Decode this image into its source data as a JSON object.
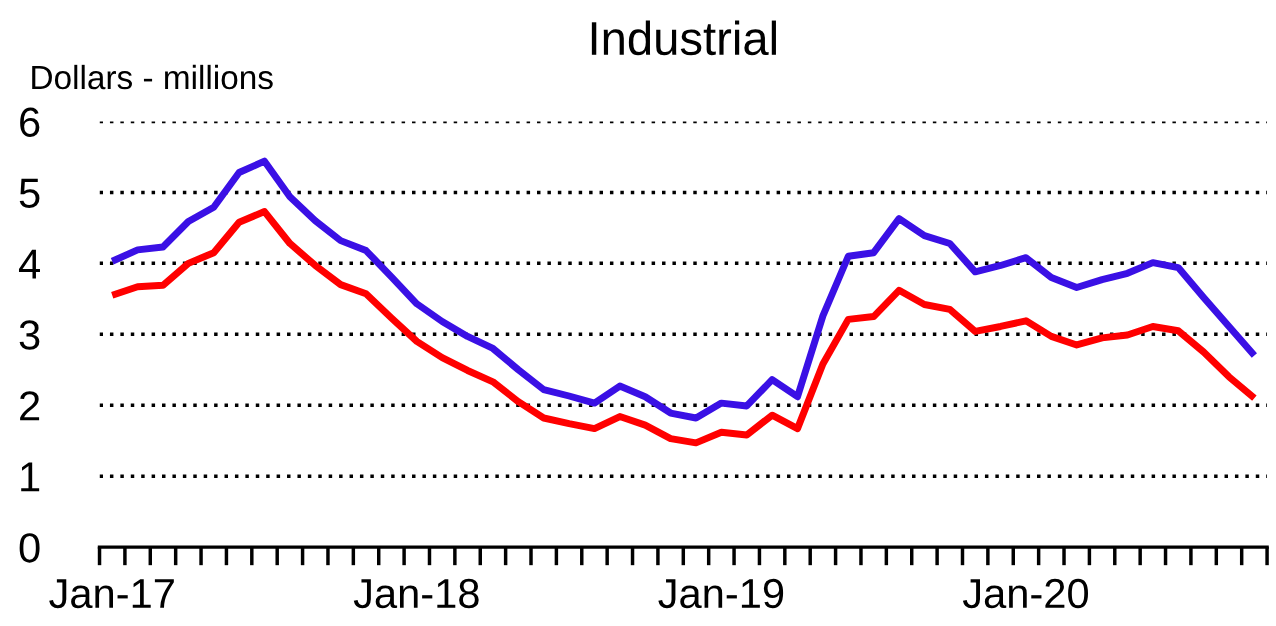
{
  "chart_data": {
    "type": "line",
    "title": "Industrial",
    "ylabel": "Dollars - millions",
    "categories": [
      "Jan-17",
      null,
      null,
      null,
      null,
      null,
      null,
      null,
      null,
      null,
      null,
      null,
      "Jan-18",
      null,
      null,
      null,
      null,
      null,
      null,
      null,
      null,
      null,
      null,
      null,
      "Jan-19",
      null,
      null,
      null,
      null,
      null,
      null,
      null,
      null,
      null,
      null,
      null,
      "Jan-20",
      null,
      null,
      null,
      null,
      null,
      null,
      null,
      null,
      null
    ],
    "series": [
      {
        "color": "#3a10e5",
        "values": [
          4.03,
          4.19,
          4.23,
          4.59,
          4.79,
          5.28,
          5.44,
          4.94,
          4.6,
          4.32,
          4.18,
          3.81,
          3.43,
          3.18,
          2.97,
          2.8,
          2.5,
          2.22,
          2.13,
          2.03,
          2.27,
          2.12,
          1.89,
          1.82,
          2.03,
          1.99,
          2.36,
          2.12,
          3.26,
          4.1,
          4.15,
          4.63,
          4.39,
          4.28,
          3.88,
          3.97,
          4.08,
          3.8,
          3.66,
          3.77,
          3.86,
          4.01,
          3.94,
          3.52,
          3.11,
          2.7
        ]
      },
      {
        "color": "#ff0000",
        "values": [
          3.55,
          3.67,
          3.69,
          4.0,
          4.15,
          4.58,
          4.73,
          4.28,
          3.97,
          3.7,
          3.57,
          3.23,
          2.9,
          2.67,
          2.49,
          2.33,
          2.05,
          1.82,
          1.74,
          1.67,
          1.84,
          1.72,
          1.53,
          1.47,
          1.62,
          1.58,
          1.86,
          1.67,
          2.58,
          3.21,
          3.25,
          3.62,
          3.42,
          3.35,
          3.04,
          3.11,
          3.19,
          2.97,
          2.85,
          2.95,
          2.99,
          3.11,
          3.05,
          2.75,
          2.4,
          2.1
        ]
      }
    ],
    "ylim": [
      0,
      6
    ],
    "yticks": [
      0,
      1,
      2,
      3,
      4,
      5,
      6
    ],
    "grid": "y",
    "line_style": "solid",
    "marker": "none"
  }
}
